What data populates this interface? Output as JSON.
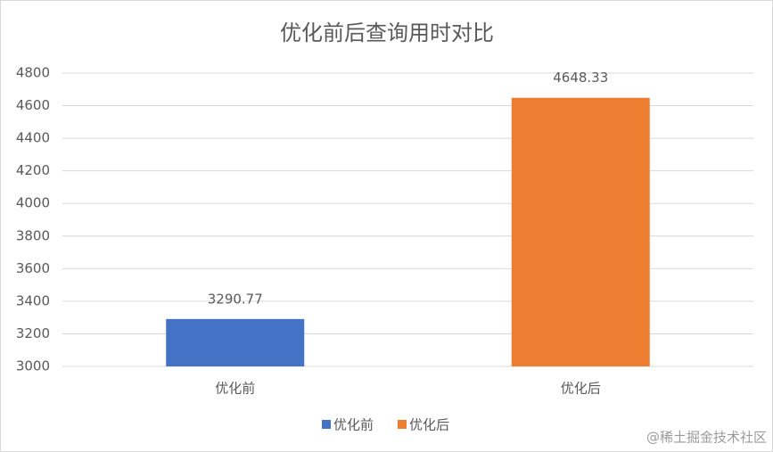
{
  "chart_data": {
    "type": "bar",
    "title": "优化前后查询用时对比",
    "categories": [
      "优化前",
      "优化后"
    ],
    "values": [
      3290.77,
      4648.33
    ],
    "colors": [
      "#4472c4",
      "#ed7d31"
    ],
    "ylim": [
      3000,
      4800
    ],
    "yticks": [
      3000,
      3200,
      3400,
      3600,
      3800,
      4000,
      4200,
      4400,
      4600,
      4800
    ],
    "grid": true,
    "legend": "bottom"
  },
  "watermark": "@稀土掘金技术社区"
}
